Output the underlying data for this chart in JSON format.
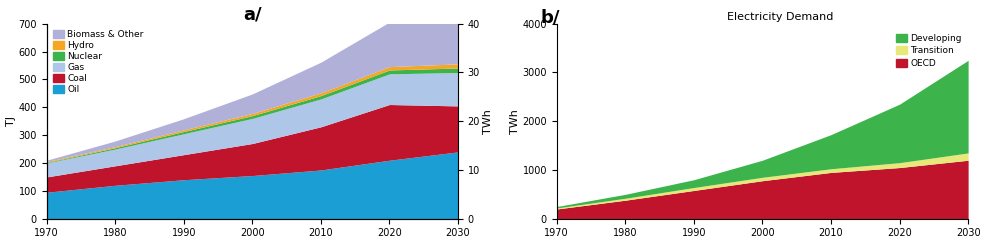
{
  "years": [
    1970,
    1980,
    1990,
    2000,
    2010,
    2020,
    2030
  ],
  "chart_a": {
    "title": "a/",
    "ylabel": "TJ",
    "ylabel2": "TWh",
    "ylim": [
      0,
      700
    ],
    "ylim2": [
      0,
      40
    ],
    "yticks": [
      0,
      100,
      200,
      300,
      400,
      500,
      600,
      700
    ],
    "yticks2": [
      0,
      10,
      20,
      30,
      40
    ],
    "layers": {
      "Oil": [
        95,
        120,
        140,
        155,
        175,
        210,
        240
      ],
      "Coal": [
        55,
        70,
        90,
        115,
        155,
        200,
        165
      ],
      "Gas": [
        50,
        60,
        75,
        90,
        100,
        110,
        120
      ],
      "Nuclear": [
        2,
        5,
        8,
        10,
        12,
        14,
        16
      ],
      "Hydro": [
        3,
        4,
        6,
        8,
        10,
        12,
        15
      ],
      "Biomass & Other": [
        5,
        20,
        40,
        70,
        110,
        160,
        145
      ]
    },
    "colors": {
      "Oil": "#1a9ed4",
      "Coal": "#c0142c",
      "Gas": "#aec6e8",
      "Nuclear": "#3cb44b",
      "Hydro": "#f5a623",
      "Biomass & Other": "#b0b0d8"
    },
    "legend_order": [
      "Biomass & Other",
      "Hydro",
      "Nuclear",
      "Gas",
      "Coal",
      "Oil"
    ]
  },
  "chart_b": {
    "title": "b/",
    "chart_title": "Electricity Demand",
    "ylabel": "TWh",
    "ylim": [
      0,
      4000
    ],
    "yticks": [
      0,
      1000,
      2000,
      3000,
      4000
    ],
    "layers": {
      "OECD": [
        200,
        380,
        580,
        780,
        950,
        1050,
        1200
      ],
      "Transition": [
        20,
        40,
        60,
        70,
        75,
        100,
        150
      ],
      "Developing": [
        30,
        80,
        160,
        350,
        700,
        1200,
        1900
      ]
    },
    "colors": {
      "OECD": "#c0142c",
      "Transition": "#e8e87a",
      "Developing": "#3cb44b"
    },
    "legend_order": [
      "Developing",
      "Transition",
      "OECD"
    ]
  }
}
